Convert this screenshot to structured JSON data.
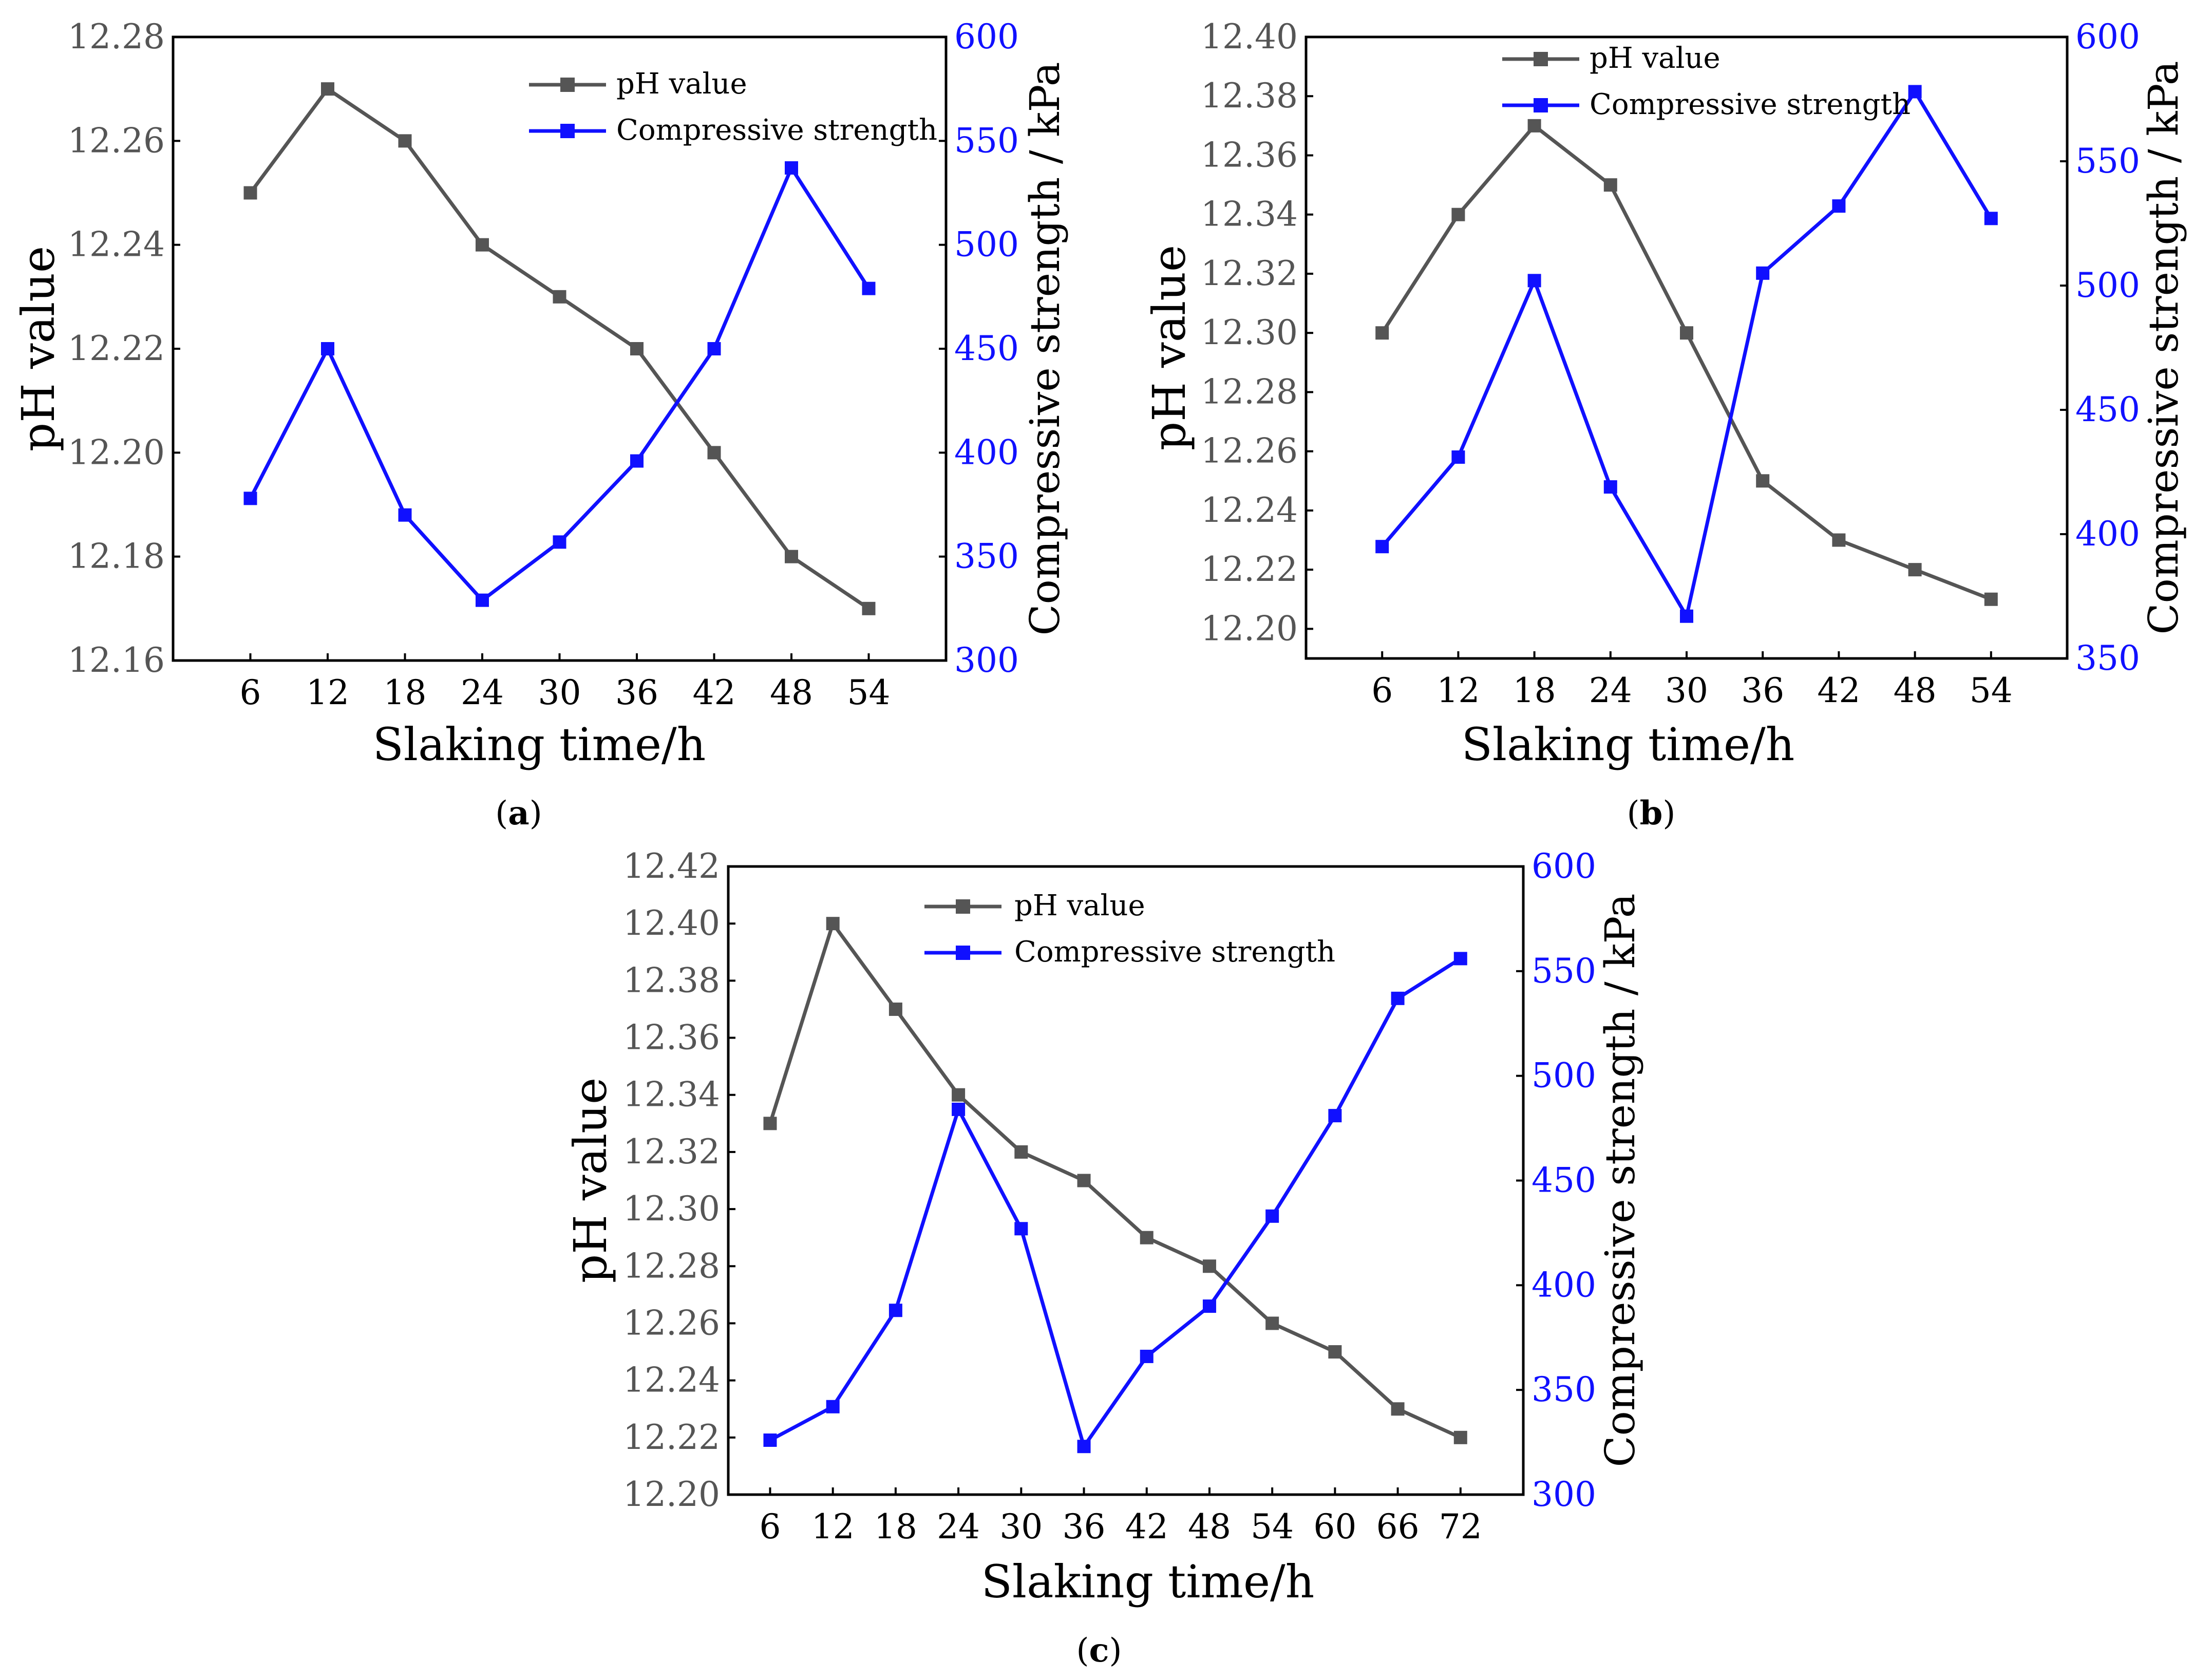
{
  "colors": {
    "ph": "#555555",
    "strength": "#1010ff",
    "axis": "#000000"
  },
  "chart_data": [
    {
      "type": "line",
      "caption": "(a)",
      "caption_label": "a",
      "xlabel": "Slaking time/h",
      "ylabel": "pH value",
      "y2label": "Compressive strength / kPa",
      "x": [
        6,
        12,
        18,
        24,
        30,
        36,
        42,
        48,
        54
      ],
      "ylim": [
        12.16,
        12.28
      ],
      "y_ticks": [
        "12.16",
        "12.18",
        "12.20",
        "12.22",
        "12.24",
        "12.26",
        "12.28"
      ],
      "y2lim": [
        300,
        600
      ],
      "y2_ticks": [
        "300",
        "350",
        "400",
        "450",
        "500",
        "550",
        "600"
      ],
      "legend": "top-right",
      "series": [
        {
          "name": "pH value",
          "axis": "left",
          "values": [
            12.25,
            12.27,
            12.26,
            12.24,
            12.23,
            12.22,
            12.2,
            12.18,
            12.17
          ]
        },
        {
          "name": "Compressive strength",
          "axis": "right",
          "values": [
            378,
            450,
            370,
            329,
            357,
            396,
            450,
            537,
            479
          ]
        }
      ]
    },
    {
      "type": "line",
      "caption": "(b)",
      "caption_label": "b",
      "xlabel": "Slaking time/h",
      "ylabel": "pH value",
      "y2label": "Compressive strength / kPa",
      "x": [
        6,
        12,
        18,
        24,
        30,
        36,
        42,
        48,
        54
      ],
      "ylim": [
        12.19,
        12.4
      ],
      "y_ticks": [
        "12.20",
        "12.22",
        "12.24",
        "12.26",
        "12.28",
        "12.30",
        "12.32",
        "12.34",
        "12.36",
        "12.38",
        "12.40"
      ],
      "y2lim": [
        350,
        600
      ],
      "y2_ticks": [
        "350",
        "400",
        "450",
        "500",
        "550",
        "600"
      ],
      "legend": "top-center",
      "series": [
        {
          "name": "pH value",
          "axis": "left",
          "values": [
            12.3,
            12.34,
            12.37,
            12.35,
            12.3,
            12.25,
            12.23,
            12.22,
            12.21
          ]
        },
        {
          "name": "Compressive strength",
          "axis": "right",
          "values": [
            395,
            431,
            502,
            419,
            367,
            505,
            532,
            578,
            527
          ]
        }
      ]
    },
    {
      "type": "line",
      "caption": "(c)",
      "caption_label": "c",
      "xlabel": "Slaking time/h",
      "ylabel": "pH value",
      "y2label": "Compressive strength / kPa",
      "x": [
        6,
        12,
        18,
        24,
        30,
        36,
        42,
        48,
        54,
        60,
        66,
        72
      ],
      "ylim": [
        12.2,
        12.42
      ],
      "y_ticks": [
        "12.20",
        "12.22",
        "12.24",
        "12.26",
        "12.28",
        "12.30",
        "12.32",
        "12.34",
        "12.36",
        "12.38",
        "12.40",
        "12.42"
      ],
      "y2lim": [
        300,
        600
      ],
      "y2_ticks": [
        "300",
        "350",
        "400",
        "450",
        "500",
        "550",
        "600"
      ],
      "legend": "top-left",
      "series": [
        {
          "name": "pH value",
          "axis": "left",
          "values": [
            12.33,
            12.4,
            12.37,
            12.34,
            12.32,
            12.31,
            12.29,
            12.28,
            12.26,
            12.25,
            12.23,
            12.22
          ]
        },
        {
          "name": "Compressive strength",
          "axis": "right",
          "values": [
            326,
            342,
            388,
            484,
            427,
            323,
            366,
            390,
            433,
            481,
            537,
            556
          ]
        }
      ]
    }
  ]
}
